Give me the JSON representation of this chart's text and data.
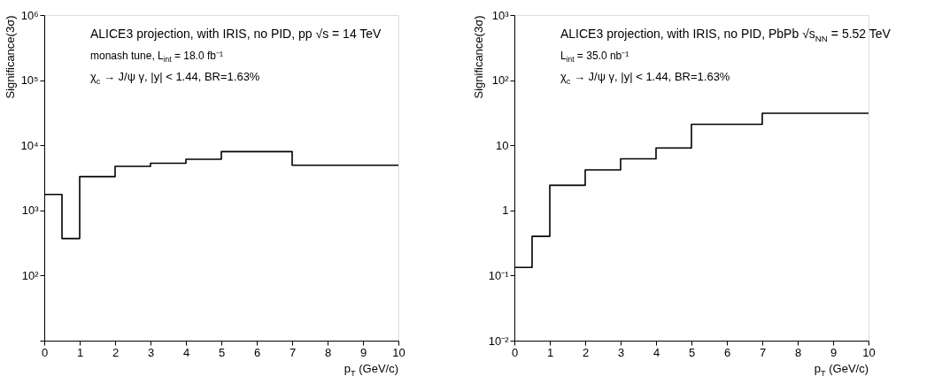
{
  "chart_data": [
    {
      "type": "histogram",
      "bins": [
        0,
        0.5,
        1,
        2,
        3,
        4,
        5,
        7,
        10
      ],
      "values": [
        1760,
        370,
        3300,
        4750,
        5300,
        6100,
        8000,
        4950
      ],
      "color": "#000000",
      "xlabel": "p$_{T}$ (GeV/c)",
      "ylabel": "Significance(3σ)",
      "log": "y",
      "grid": false,
      "xlim": [
        0,
        10
      ],
      "xticks": [
        0,
        1,
        2,
        3,
        4,
        5,
        6,
        7,
        8,
        9,
        10
      ],
      "ylim": [
        10,
        1000000
      ],
      "yticks": [
        {
          "value": 10,
          "label": null
        },
        {
          "value": 100,
          "label": "10²"
        },
        {
          "value": 1000,
          "label": "10³"
        },
        {
          "value": 10000,
          "label": "10⁴"
        },
        {
          "value": 100000,
          "label": "10⁵"
        },
        {
          "value": 1000000,
          "label": "10⁶"
        }
      ],
      "annotations": [
        "ALICE3 projection, with IRIS, no PID, pp √s = 14 TeV",
        "monash tune, L$_{int}$ = 18.0 fb⁻¹",
        "χ$_{c}$ → J/ψ γ, |y| < 1.44, BR=1.63%"
      ]
    },
    {
      "type": "histogram",
      "bins": [
        0,
        0.5,
        1,
        2,
        3,
        4,
        5,
        7,
        10
      ],
      "values": [
        0.133,
        0.4,
        2.43,
        4.2,
        6.2,
        9.1,
        21,
        31
      ],
      "color": "#000000",
      "xlabel": "p$_{T}$ (GeV/c)",
      "ylabel": "Significance(3σ)",
      "log": "y",
      "grid": false,
      "xlim": [
        0,
        10
      ],
      "xticks": [
        0,
        1,
        2,
        3,
        4,
        5,
        6,
        7,
        8,
        9,
        10
      ],
      "ylim": [
        0.01,
        1000
      ],
      "yticks": [
        {
          "value": 0.01,
          "label": "10⁻²"
        },
        {
          "value": 0.1,
          "label": "10⁻¹"
        },
        1,
        10,
        {
          "value": 100,
          "label": "10²"
        },
        {
          "value": 1000,
          "label": "10³"
        }
      ],
      "annotations": [
        "ALICE3 projection, with IRIS, no PID, PbPb √s$_{NN}$ = 5.52 TeV",
        "L$_{int}$ = 35.0 nb⁻¹",
        "χ$_{c}$ → J/ψ γ, |y| < 1.44, BR=1.63%"
      ]
    }
  ]
}
